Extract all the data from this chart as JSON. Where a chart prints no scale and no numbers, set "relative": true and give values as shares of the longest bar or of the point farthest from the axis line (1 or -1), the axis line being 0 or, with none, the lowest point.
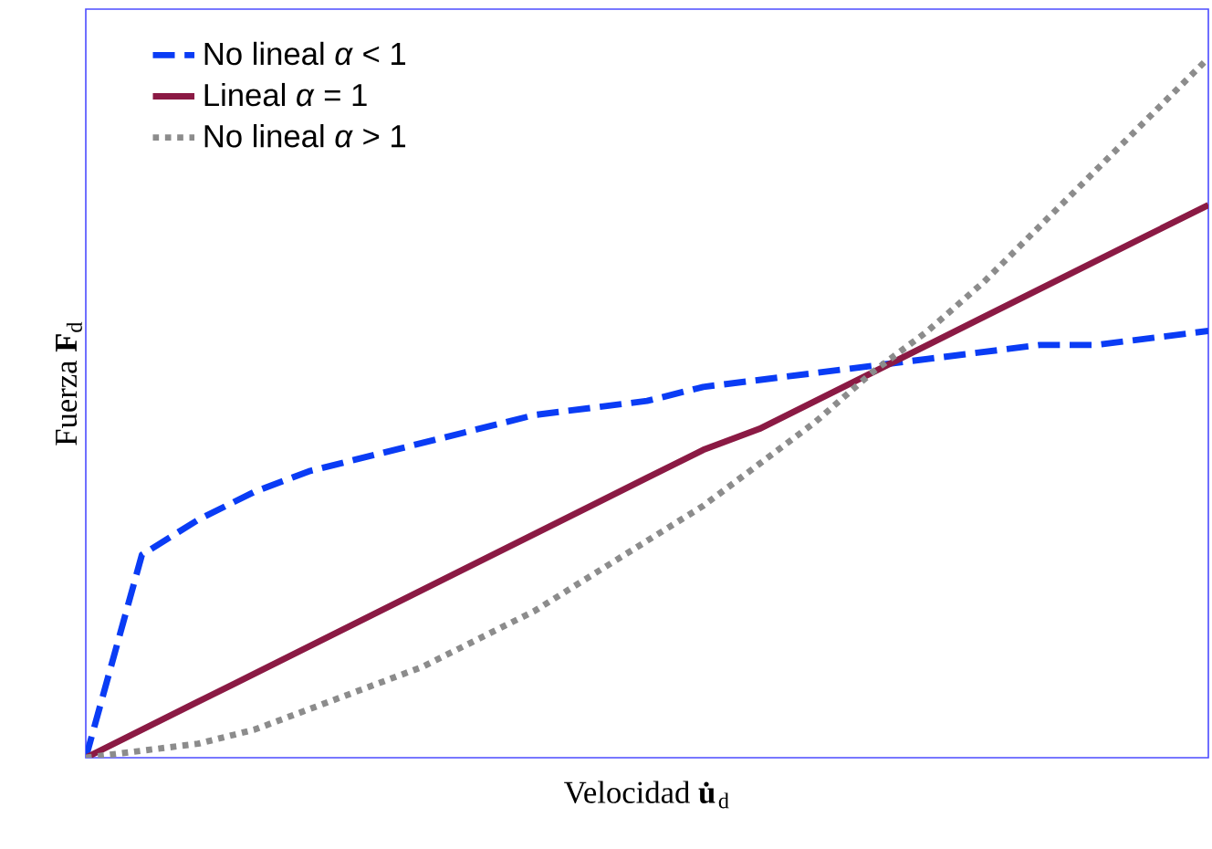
{
  "chart_data": {
    "type": "line",
    "relative": true,
    "xlabel": "Velocidad **u̇**$_{d}$",
    "ylabel": "Fuerza   **F**$_{d}$",
    "categories": [
      null,
      null,
      null,
      null,
      null,
      null,
      null,
      null,
      null,
      null,
      null,
      null,
      null,
      null,
      null,
      null,
      null,
      null,
      null,
      null,
      null
    ],
    "series": [
      {
        "name": "No lineal  *α* < 1",
        "color": "#0a3cf5",
        "line_style": "dashed",
        "values": [
          0,
          0.29,
          0.34,
          0.38,
          0.41,
          0.43,
          0.45,
          0.47,
          0.49,
          0.5,
          0.51,
          0.53,
          0.54,
          0.55,
          0.56,
          0.57,
          0.58,
          0.59,
          0.59,
          0.6,
          0.61
        ]
      },
      {
        "name": "Lineal *α* = 1",
        "color": "#8b1a44",
        "line_style": "solid",
        "values": [
          0,
          0.04,
          0.08,
          0.12,
          0.16,
          0.2,
          0.24,
          0.28,
          0.32,
          0.36,
          0.4,
          0.44,
          0.47,
          0.51,
          0.55,
          0.59,
          0.63,
          0.67,
          0.71,
          0.75,
          0.79
        ]
      },
      {
        "name": "No lineal *α* > 1",
        "color": "#8c8c8c",
        "line_style": "dotted",
        "values": [
          0,
          0.01,
          0.02,
          0.04,
          0.07,
          0.1,
          0.13,
          0.17,
          0.21,
          0.26,
          0.31,
          0.36,
          0.42,
          0.48,
          0.55,
          0.61,
          0.68,
          0.76,
          0.84,
          0.92,
          1
        ]
      }
    ],
    "legend": "top left",
    "marker": "none"
  }
}
